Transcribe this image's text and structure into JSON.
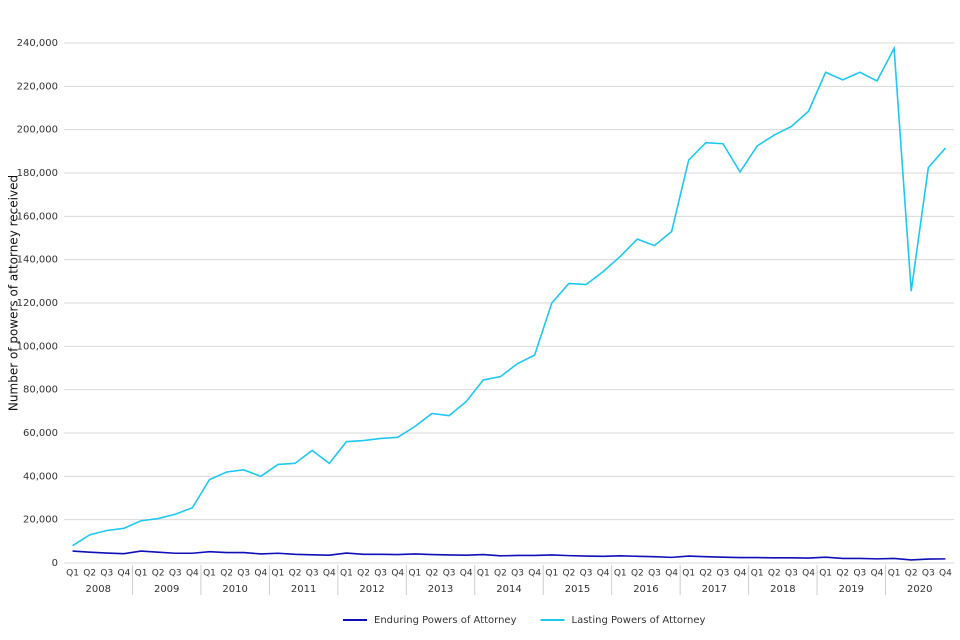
{
  "chart_data": {
    "type": "line",
    "y_label": "Number of powers of attorney received",
    "categories": [
      "Q1",
      "Q2",
      "Q3",
      "Q4",
      "Q1",
      "Q2",
      "Q3",
      "Q4",
      "Q1",
      "Q2",
      "Q3",
      "Q4",
      "Q1",
      "Q2",
      "Q3",
      "Q4",
      "Q1",
      "Q2",
      "Q3",
      "Q4",
      "Q1",
      "Q2",
      "Q3",
      "Q4",
      "Q1",
      "Q2",
      "Q3",
      "Q4",
      "Q1",
      "Q2",
      "Q3",
      "Q4",
      "Q1",
      "Q2",
      "Q3",
      "Q4",
      "Q1",
      "Q2",
      "Q3",
      "Q4",
      "Q1",
      "Q2",
      "Q3",
      "Q4",
      "Q1",
      "Q2",
      "Q3",
      "Q4",
      "Q1",
      "Q2",
      "Q3",
      "Q4"
    ],
    "years": [
      "2008",
      "2009",
      "2010",
      "2011",
      "2012",
      "2013",
      "2014",
      "2015",
      "2016",
      "2017",
      "2018",
      "2019",
      "2020"
    ],
    "series": [
      {
        "name": "Enduring Powers of Attorney",
        "color": "#1010b8",
        "values": [
          5500,
          5000,
          4600,
          4300,
          5500,
          5000,
          4500,
          4500,
          5200,
          4800,
          4800,
          4200,
          4500,
          4000,
          3800,
          3600,
          4600,
          4000,
          4000,
          3900,
          4200,
          3900,
          3700,
          3600,
          3900,
          3300,
          3500,
          3500,
          3700,
          3400,
          3200,
          3100,
          3300,
          3100,
          2900,
          2600,
          3200,
          2900,
          2700,
          2500,
          2500,
          2400,
          2400,
          2300,
          2700,
          2100,
          2100,
          1900,
          2100,
          1400,
          1800,
          1900
        ]
      },
      {
        "name": "Lasting Powers of Attorney",
        "color": "#1ec8f0",
        "values": [
          8000,
          13000,
          15000,
          16000,
          19500,
          20500,
          22500,
          25500,
          38500,
          42000,
          43000,
          40000,
          45500,
          46000,
          52000,
          46000,
          56000,
          56500,
          57500,
          58000,
          63000,
          69000,
          68000,
          74500,
          84500,
          86000,
          92000,
          96000,
          120000,
          129000,
          128500,
          134500,
          141500,
          149500,
          146500,
          153000,
          186000,
          194000,
          193500,
          180500,
          192500,
          197500,
          201500,
          208500,
          226500,
          223000,
          226500,
          222500,
          237500,
          125500,
          182500,
          191500
        ]
      }
    ],
    "ylim": [
      0,
      240000
    ],
    "yticks": [
      0,
      {
        "value": 20000,
        "label": "20,000"
      },
      {
        "value": 40000,
        "label": "40,000"
      },
      {
        "value": 60000,
        "label": "60,000"
      },
      {
        "value": 80000,
        "label": "80,000"
      },
      {
        "value": 100000,
        "label": "100,000"
      },
      {
        "value": 120000,
        "label": "120,000"
      },
      {
        "value": 140000,
        "label": "140,000"
      },
      {
        "value": 160000,
        "label": "160,000"
      },
      {
        "value": 180000,
        "label": "180,000"
      },
      {
        "value": 200000,
        "label": "200,000"
      },
      {
        "value": 220000,
        "label": "220,000"
      },
      {
        "value": 240000,
        "label": "240,000"
      }
    ],
    "grid": true
  }
}
